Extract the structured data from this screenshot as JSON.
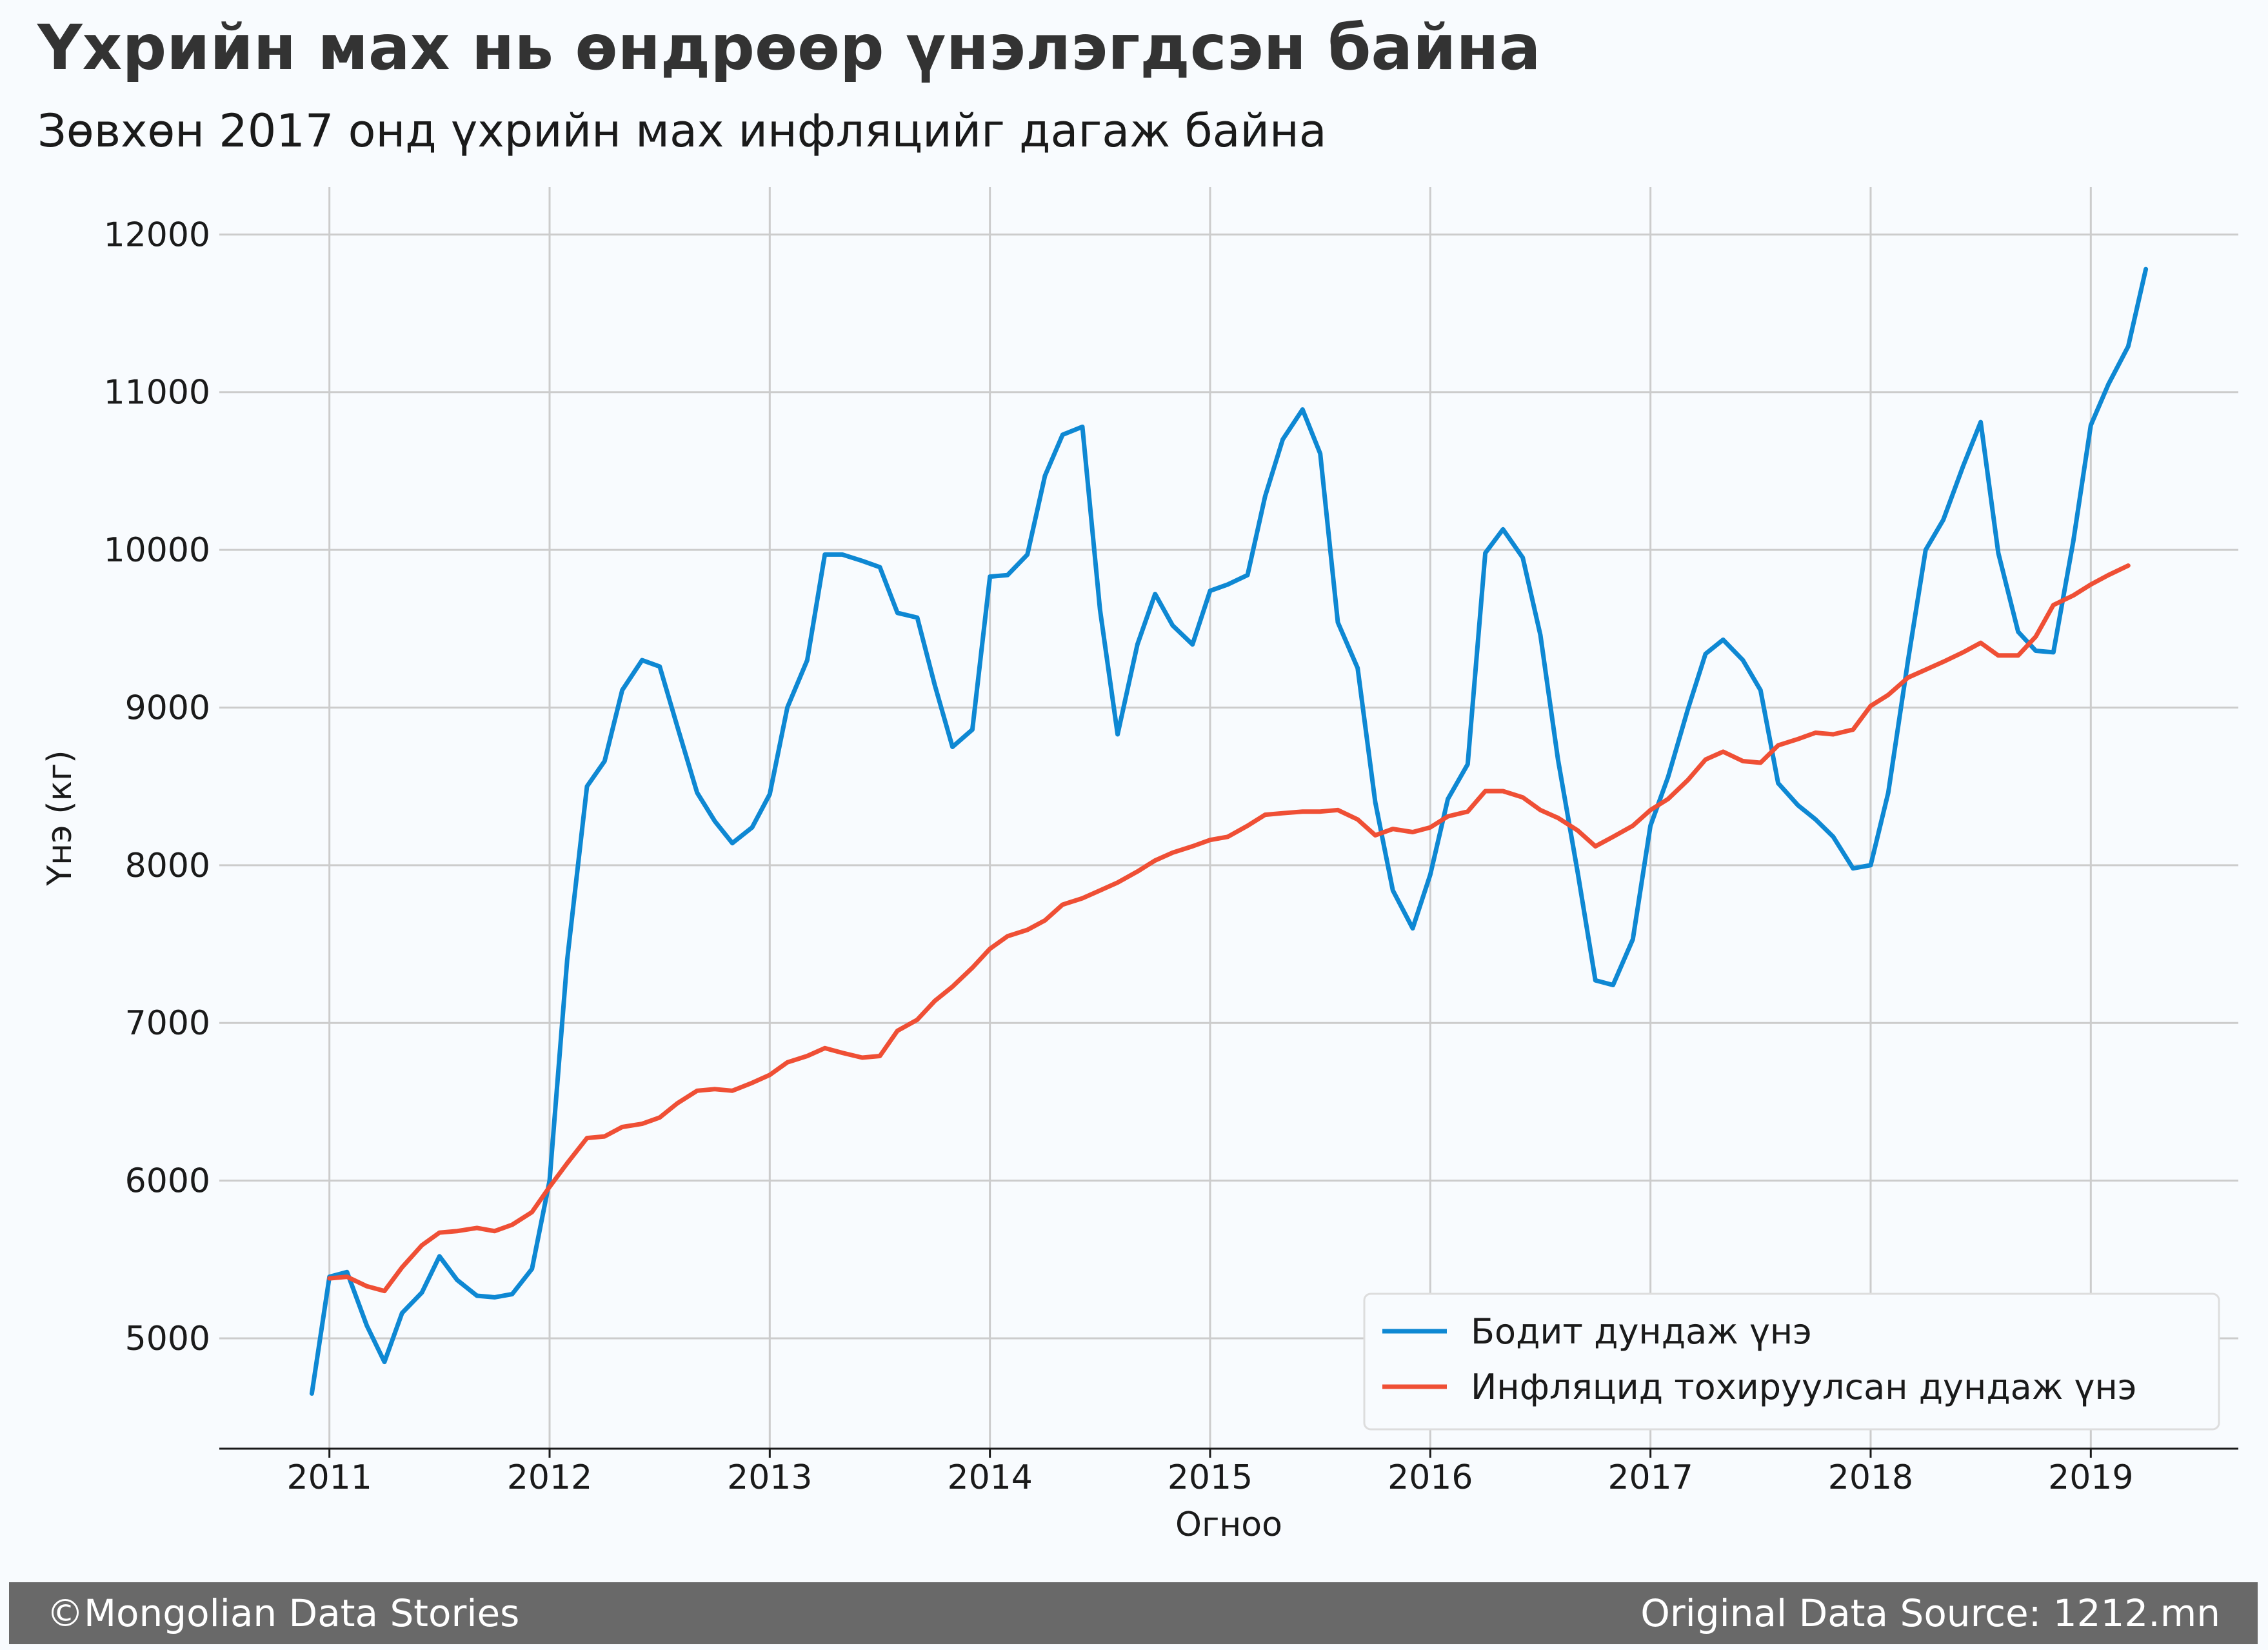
{
  "chart_data": {
    "type": "line",
    "title": "Үхрийн мах нь өндрөөр үнэлэгдсэн байна",
    "subtitle": "Зөвхөн 2017 онд үхрийн мах инфляцийг дагаж байна",
    "xlabel": "Огноо",
    "ylabel": "Үнэ (кг)",
    "xlim": [
      2010.5,
      2019.67
    ],
    "ylim": [
      4300,
      12300
    ],
    "xticks": [
      "2011",
      "2012",
      "2013",
      "2014",
      "2015",
      "2016",
      "2017",
      "2018",
      "2019"
    ],
    "yticks": [
      "5000",
      "6000",
      "7000",
      "8000",
      "9000",
      "10000",
      "11000",
      "12000"
    ],
    "grid": true,
    "legend_position": "lower right",
    "series": [
      {
        "name": "Бодит дундаж үнэ",
        "color": "#0e88d3",
        "x": [
          2010.92,
          2011.0,
          2011.08,
          2011.17,
          2011.25,
          2011.33,
          2011.42,
          2011.5,
          2011.58,
          2011.67,
          2011.75,
          2011.83,
          2011.92,
          2012.0,
          2012.08,
          2012.17,
          2012.25,
          2012.33,
          2012.42,
          2012.5,
          2012.58,
          2012.67,
          2012.75,
          2012.83,
          2012.92,
          2013.0,
          2013.08,
          2013.17,
          2013.25,
          2013.33,
          2013.42,
          2013.5,
          2013.58,
          2013.67,
          2013.75,
          2013.83,
          2013.92,
          2014.0,
          2014.08,
          2014.17,
          2014.25,
          2014.33,
          2014.42,
          2014.5,
          2014.58,
          2014.67,
          2014.75,
          2014.83,
          2014.92,
          2015.0,
          2015.08,
          2015.17,
          2015.25,
          2015.33,
          2015.42,
          2015.5,
          2015.58,
          2015.67,
          2015.75,
          2015.83,
          2015.92,
          2016.0,
          2016.08,
          2016.17,
          2016.25,
          2016.33,
          2016.42,
          2016.5,
          2016.58,
          2016.67,
          2016.75,
          2016.83,
          2016.92,
          2017.0,
          2017.08,
          2017.17,
          2017.25,
          2017.33,
          2017.42,
          2017.5,
          2017.58,
          2017.67,
          2017.75,
          2017.83,
          2017.92,
          2018.0,
          2018.08,
          2018.17,
          2018.25,
          2018.33,
          2018.42,
          2018.5,
          2018.58,
          2018.67,
          2018.75,
          2018.83,
          2018.92,
          2019.0,
          2019.08,
          2019.17,
          2019.25
        ],
        "y": [
          4650,
          5390,
          5420,
          5080,
          4850,
          5160,
          5290,
          5520,
          5370,
          5270,
          5260,
          5280,
          5440,
          6000,
          7400,
          8500,
          8660,
          9110,
          9300,
          9260,
          8880,
          8460,
          8280,
          8140,
          8240,
          8450,
          9000,
          9300,
          9970,
          9970,
          9930,
          9890,
          9600,
          9570,
          9140,
          8750,
          8860,
          9830,
          9840,
          9970,
          10470,
          10730,
          10780,
          9620,
          8830,
          9400,
          9720,
          9520,
          9400,
          9740,
          9780,
          9840,
          10340,
          10700,
          10890,
          10610,
          9540,
          9250,
          8400,
          7840,
          7600,
          7940,
          8420,
          8640,
          9980,
          10130,
          9950,
          9460,
          8670,
          7950,
          7270,
          7240,
          7530,
          8250,
          8560,
          8990,
          9340,
          9430,
          9300,
          9110,
          8520,
          8380,
          8290,
          8180,
          7980,
          8000,
          8460,
          9300,
          10000,
          10190,
          10530,
          10810,
          9980,
          9480,
          9360,
          9350,
          10050,
          10790,
          11050,
          11290,
          11780
        ]
      },
      {
        "name": "Инфляцид тохируулсан дундаж үнэ",
        "color": "#ef4f35",
        "x": [
          2011.0,
          2011.08,
          2011.17,
          2011.25,
          2011.33,
          2011.42,
          2011.5,
          2011.58,
          2011.67,
          2011.75,
          2011.83,
          2011.92,
          2012.0,
          2012.08,
          2012.17,
          2012.25,
          2012.33,
          2012.42,
          2012.5,
          2012.58,
          2012.67,
          2012.75,
          2012.83,
          2012.92,
          2013.0,
          2013.08,
          2013.17,
          2013.25,
          2013.33,
          2013.42,
          2013.5,
          2013.58,
          2013.67,
          2013.75,
          2013.83,
          2013.92,
          2014.0,
          2014.08,
          2014.17,
          2014.25,
          2014.33,
          2014.42,
          2014.5,
          2014.58,
          2014.67,
          2014.75,
          2014.83,
          2014.92,
          2015.0,
          2015.08,
          2015.17,
          2015.25,
          2015.33,
          2015.42,
          2015.5,
          2015.58,
          2015.67,
          2015.75,
          2015.83,
          2015.92,
          2016.0,
          2016.08,
          2016.17,
          2016.25,
          2016.33,
          2016.42,
          2016.5,
          2016.58,
          2016.67,
          2016.75,
          2016.83,
          2016.92,
          2017.0,
          2017.08,
          2017.17,
          2017.25,
          2017.33,
          2017.42,
          2017.5,
          2017.58,
          2017.67,
          2017.75,
          2017.83,
          2017.92,
          2018.0,
          2018.08,
          2018.17,
          2018.25,
          2018.33,
          2018.42,
          2018.5,
          2018.58,
          2018.67,
          2018.75,
          2018.83,
          2018.92,
          2019.0,
          2019.08,
          2019.17
        ],
        "y": [
          5380,
          5390,
          5330,
          5300,
          5450,
          5590,
          5670,
          5680,
          5700,
          5680,
          5720,
          5800,
          5960,
          6110,
          6270,
          6280,
          6340,
          6360,
          6400,
          6490,
          6570,
          6580,
          6570,
          6620,
          6670,
          6750,
          6790,
          6840,
          6810,
          6780,
          6790,
          6950,
          7020,
          7140,
          7230,
          7350,
          7470,
          7550,
          7590,
          7650,
          7750,
          7790,
          7840,
          7890,
          7960,
          8030,
          8080,
          8120,
          8160,
          8180,
          8250,
          8320,
          8330,
          8340,
          8340,
          8350,
          8290,
          8190,
          8230,
          8210,
          8240,
          8310,
          8340,
          8470,
          8470,
          8430,
          8350,
          8300,
          8220,
          8120,
          8180,
          8250,
          8350,
          8420,
          8540,
          8670,
          8720,
          8660,
          8650,
          8760,
          8800,
          8840,
          8830,
          8860,
          9010,
          9080,
          9190,
          9240,
          9290,
          9350,
          9410,
          9330,
          9330,
          9450,
          9650,
          9710,
          9780,
          9840,
          9900
        ]
      }
    ]
  },
  "footer": {
    "copyright": "©Mongolian Data Stories",
    "source": "Original Data Source: 1212.mn"
  }
}
